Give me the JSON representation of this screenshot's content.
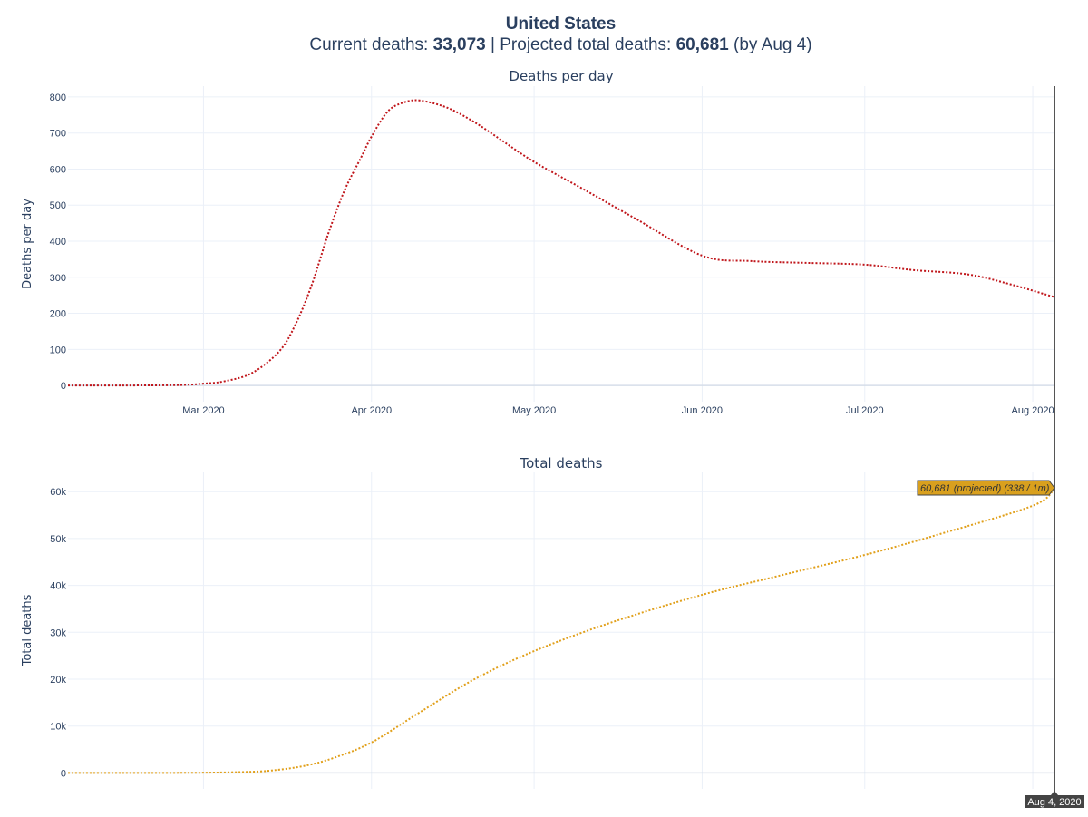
{
  "header": {
    "title": "United States",
    "current_label": "Current deaths:",
    "current_value": "33,073",
    "separator": "|",
    "projected_label": "Projected total deaths:",
    "projected_value": "60,681",
    "projected_suffix": "(by Aug 4)"
  },
  "colors": {
    "text": "#2a3f5f",
    "deaths_per_day_line": "#c0161b",
    "total_deaths_line": "#e1a01b",
    "hover_label_bg": "#d9a01e",
    "spike_line": "#555555"
  },
  "hover": {
    "label": "60,681 (projected) (338 / 1m)",
    "x_label": "Aug 4, 2020"
  },
  "chart_data": [
    {
      "type": "line",
      "title": "Deaths per day",
      "xlabel": "",
      "ylabel": "Deaths per day",
      "x_ticks": [
        "Mar 2020",
        "Apr 2020",
        "May 2020",
        "Jun 2020",
        "Jul 2020",
        "Aug 2020"
      ],
      "y_ticks": [
        "0",
        "100",
        "200",
        "300",
        "400",
        "500",
        "600",
        "700",
        "800"
      ],
      "ylim": [
        -45,
        830
      ],
      "xlim": [
        "2020-02-05",
        "2020-08-05"
      ],
      "grid": true,
      "line_style": "dotted",
      "series": [
        {
          "x": [
            "2020-02-05",
            "2020-02-15",
            "2020-02-25",
            "2020-03-01",
            "2020-03-05",
            "2020-03-10",
            "2020-03-15",
            "2020-03-18",
            "2020-03-21",
            "2020-03-24",
            "2020-03-27",
            "2020-03-30",
            "2020-04-01",
            "2020-04-04",
            "2020-04-07",
            "2020-04-10",
            "2020-04-15",
            "2020-04-20",
            "2020-04-25",
            "2020-05-01",
            "2020-05-10",
            "2020-05-20",
            "2020-06-01",
            "2020-06-10",
            "2020-06-20",
            "2020-07-01",
            "2020-07-10",
            "2020-07-20",
            "2020-07-28",
            "2020-08-05"
          ],
          "y": [
            0,
            0,
            1,
            5,
            12,
            35,
            95,
            170,
            280,
            420,
            540,
            630,
            690,
            760,
            785,
            790,
            770,
            730,
            680,
            620,
            545,
            460,
            360,
            345,
            340,
            335,
            320,
            308,
            280,
            245
          ]
        }
      ]
    },
    {
      "type": "line",
      "title": "Total deaths",
      "xlabel": "",
      "ylabel": "Total deaths",
      "x_ticks": [
        "Mar 2020",
        "Apr 2020",
        "May 2020",
        "Jun 2020",
        "Jul 2020",
        "Aug 2020"
      ],
      "y_ticks": [
        "0",
        "10k",
        "20k",
        "30k",
        "40k",
        "50k",
        "60k"
      ],
      "ylim": [
        -3400,
        64100
      ],
      "xlim": [
        "2020-02-05",
        "2020-08-05"
      ],
      "grid": true,
      "line_style": "dotted",
      "series": [
        {
          "x": [
            "2020-02-05",
            "2020-02-15",
            "2020-02-25",
            "2020-03-01",
            "2020-03-10",
            "2020-03-15",
            "2020-03-20",
            "2020-03-25",
            "2020-04-01",
            "2020-04-10",
            "2020-04-20",
            "2020-05-01",
            "2020-05-15",
            "2020-06-01",
            "2020-06-15",
            "2020-07-01",
            "2020-07-15",
            "2020-08-01",
            "2020-08-05"
          ],
          "y": [
            0,
            0,
            20,
            50,
            250,
            700,
            1600,
            3200,
            6500,
            13000,
            20000,
            26000,
            32000,
            38000,
            42000,
            46500,
            51000,
            57000,
            60681
          ]
        }
      ]
    }
  ]
}
